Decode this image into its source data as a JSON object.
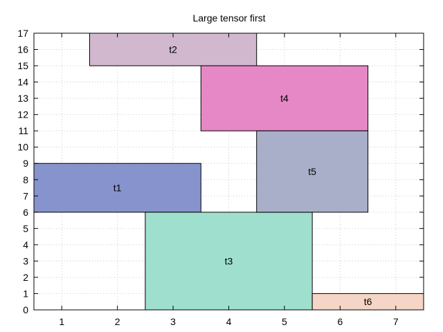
{
  "chart_data": {
    "type": "rectangles",
    "title": "Large tensor first",
    "xlabel": "",
    "ylabel": "",
    "xlim": [
      0.5,
      7.5
    ],
    "ylim": [
      0,
      17
    ],
    "xticks": [
      1,
      2,
      3,
      4,
      5,
      6,
      7
    ],
    "yticks": [
      0,
      1,
      2,
      3,
      4,
      5,
      6,
      7,
      8,
      9,
      10,
      11,
      12,
      13,
      14,
      15,
      16,
      17
    ],
    "grid": true,
    "legend": "none",
    "rects": [
      {
        "label": "t1",
        "x0": 0.5,
        "x1": 3.5,
        "y0": 6,
        "y1": 9,
        "color": "#8793cd"
      },
      {
        "label": "t2",
        "x0": 1.5,
        "x1": 4.5,
        "y0": 15,
        "y1": 17,
        "color": "#d1b8ce"
      },
      {
        "label": "t3",
        "x0": 2.5,
        "x1": 5.5,
        "y0": 0,
        "y1": 6,
        "color": "#9ee0cd"
      },
      {
        "label": "t4",
        "x0": 3.5,
        "x1": 6.5,
        "y0": 11,
        "y1": 15,
        "color": "#e688c6"
      },
      {
        "label": "t5",
        "x0": 4.5,
        "x1": 6.5,
        "y0": 6,
        "y1": 11,
        "color": "#a9afc9"
      },
      {
        "label": "t6",
        "x0": 5.5,
        "x1": 7.5,
        "y0": 0,
        "y1": 1,
        "color": "#f5d5c5"
      }
    ]
  }
}
